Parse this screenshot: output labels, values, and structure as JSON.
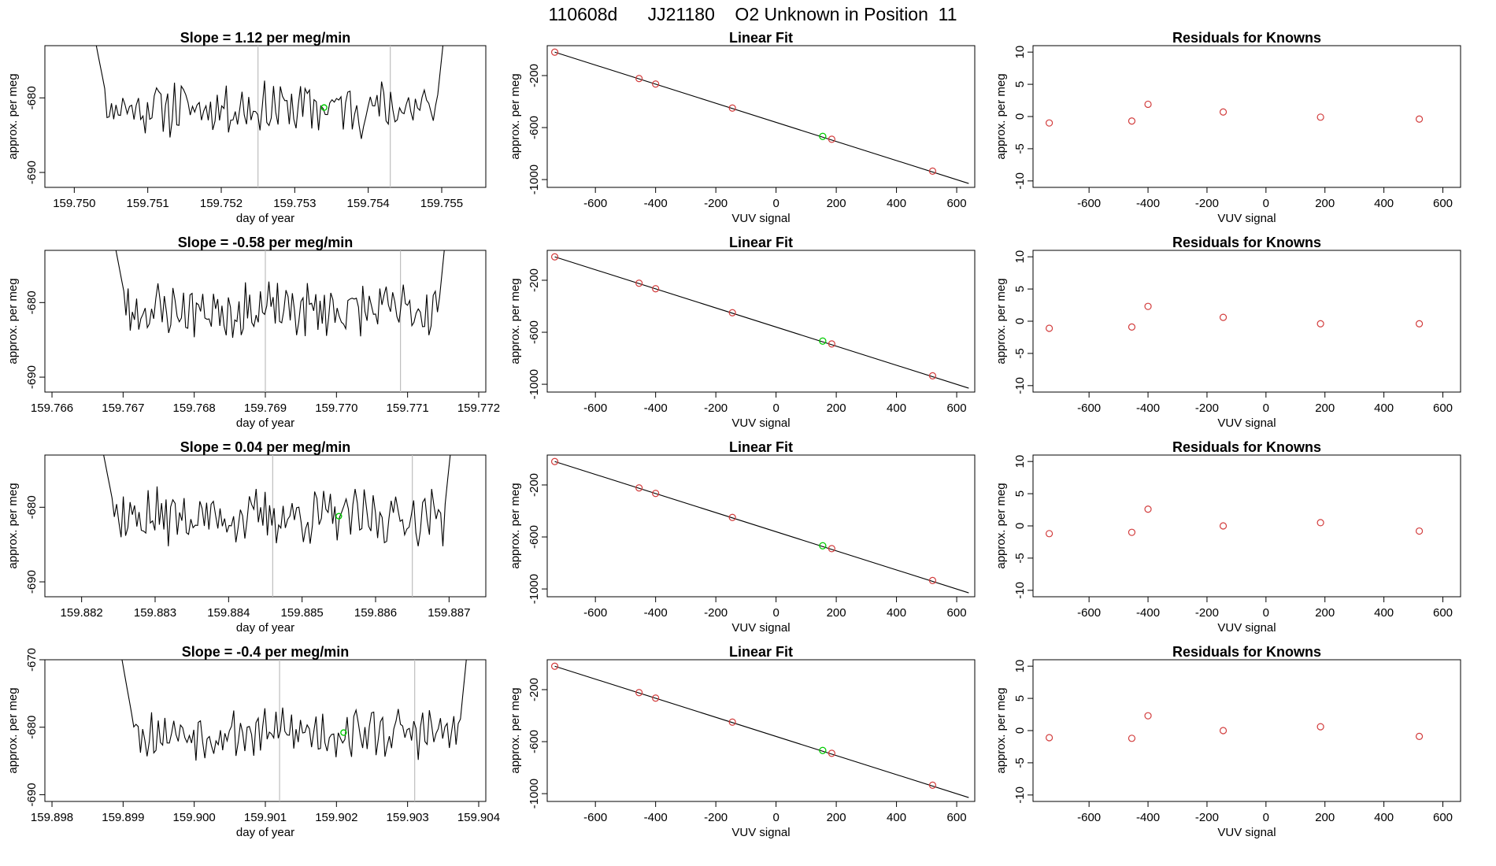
{
  "figure_title": "110608d      JJ21180    O2 Unknown in Position  11",
  "colors": {
    "trace": "#000000",
    "vline": "#bebebe",
    "highlight": "#00cc00",
    "known": "#d23c3c",
    "frame": "#000000"
  },
  "chart_data": [
    {
      "row": 0,
      "time_series": {
        "type": "line",
        "title": "Slope =  1.12  per meg/min",
        "xlabel": "day of year",
        "ylabel": "approx. per meg",
        "xlim": [
          159.7496,
          159.7556
        ],
        "ylim": [
          -692,
          -673
        ],
        "xticks": [
          "159.750",
          "159.751",
          "159.752",
          "159.753",
          "159.754",
          "159.755"
        ],
        "xtick_values": [
          159.75,
          159.751,
          159.752,
          159.753,
          159.754,
          159.755
        ],
        "yticks": [
          "-680",
          "-690"
        ],
        "ytick_values": [
          -680,
          -690
        ],
        "vlines": [
          159.7525,
          159.7543
        ],
        "x_start": 159.7502,
        "x_end": 159.7551,
        "baseline": -681.3,
        "seed": 11,
        "highlight": {
          "x": 159.7534,
          "y": -681.3
        }
      },
      "linear_fit": {
        "type": "scatter",
        "title": "Linear Fit",
        "xlabel": "VUV signal",
        "ylabel": "approx. per meg",
        "xlim": [
          -760,
          660
        ],
        "ylim": [
          -1060,
          30
        ],
        "xticks": [
          "-600",
          "-400",
          "-200",
          "0",
          "200",
          "400",
          "600"
        ],
        "xtick_values": [
          -600,
          -400,
          -200,
          0,
          200,
          400,
          600
        ],
        "yticks": [
          "-200",
          "-600",
          "-1000"
        ],
        "ytick_values": [
          -200,
          -600,
          -1000
        ],
        "line": [
          [
            -735,
            -20
          ],
          [
            640,
            -1030
          ]
        ],
        "known_points": [
          [
            -735,
            -20
          ],
          [
            -455,
            -223
          ],
          [
            -400,
            -265
          ],
          [
            -145,
            -450
          ],
          [
            185,
            -690
          ],
          [
            520,
            -935
          ]
        ],
        "unknown_point": [
          155,
          -668
        ]
      },
      "residuals": {
        "type": "scatter",
        "title": "Residuals for Knowns",
        "xlabel": "VUV signal",
        "ylabel": "approx. per meg",
        "xlim": [
          -790,
          660
        ],
        "ylim": [
          -11,
          11
        ],
        "xticks": [
          "-600",
          "-400",
          "-200",
          "0",
          "200",
          "400",
          "600"
        ],
        "xtick_values": [
          -600,
          -400,
          -200,
          0,
          200,
          400,
          600
        ],
        "yticks": [
          "-10",
          "-5",
          "0",
          "5",
          "10"
        ],
        "ytick_values": [
          -10,
          -5,
          0,
          5,
          10
        ],
        "points": [
          [
            -735,
            -1.0
          ],
          [
            -455,
            -0.7
          ],
          [
            -400,
            1.9
          ],
          [
            -145,
            0.7
          ],
          [
            185,
            -0.1
          ],
          [
            520,
            -0.4
          ]
        ]
      }
    },
    {
      "row": 1,
      "time_series": {
        "type": "line",
        "title": "Slope =  -0.58  per meg/min",
        "xlabel": "day of year",
        "ylabel": "approx. per meg",
        "xlim": [
          159.7659,
          159.7721
        ],
        "ylim": [
          -692,
          -673
        ],
        "xticks": [
          "159.766",
          "159.767",
          "159.768",
          "159.769",
          "159.770",
          "159.771",
          "159.772"
        ],
        "xtick_values": [
          159.766,
          159.767,
          159.768,
          159.769,
          159.77,
          159.771,
          159.772
        ],
        "yticks": [
          "-680",
          "-690"
        ],
        "ytick_values": [
          -680,
          -690
        ],
        "vlines": [
          159.769,
          159.7709
        ],
        "x_start": 159.7668,
        "x_end": 159.7716,
        "baseline": -681.0,
        "seed": 23,
        "highlight": null
      },
      "linear_fit": {
        "type": "scatter",
        "title": "Linear Fit",
        "xlabel": "VUV signal",
        "ylabel": "approx. per meg",
        "xlim": [
          -760,
          660
        ],
        "ylim": [
          -1060,
          30
        ],
        "xticks": [
          "-600",
          "-400",
          "-200",
          "0",
          "200",
          "400",
          "600"
        ],
        "xtick_values": [
          -600,
          -400,
          -200,
          0,
          200,
          400,
          600
        ],
        "yticks": [
          "-200",
          "-600",
          "-1000"
        ],
        "ytick_values": [
          -200,
          -600,
          -1000
        ],
        "line": [
          [
            -735,
            -20
          ],
          [
            640,
            -1030
          ]
        ],
        "known_points": [
          [
            -735,
            -20
          ],
          [
            -455,
            -223
          ],
          [
            -400,
            -265
          ],
          [
            -145,
            -450
          ],
          [
            185,
            -690
          ],
          [
            520,
            -935
          ]
        ],
        "unknown_point": [
          155,
          -668
        ]
      },
      "residuals": {
        "type": "scatter",
        "title": "Residuals for Knowns",
        "xlabel": "VUV signal",
        "ylabel": "approx. per meg",
        "xlim": [
          -790,
          660
        ],
        "ylim": [
          -11,
          11
        ],
        "xticks": [
          "-600",
          "-400",
          "-200",
          "0",
          "200",
          "400",
          "600"
        ],
        "xtick_values": [
          -600,
          -400,
          -200,
          0,
          200,
          400,
          600
        ],
        "yticks": [
          "-10",
          "-5",
          "0",
          "5",
          "10"
        ],
        "ytick_values": [
          -10,
          -5,
          0,
          5,
          10
        ],
        "points": [
          [
            -735,
            -1.1
          ],
          [
            -455,
            -0.9
          ],
          [
            -400,
            2.3
          ],
          [
            -145,
            0.6
          ],
          [
            185,
            -0.4
          ],
          [
            520,
            -0.4
          ]
        ]
      }
    },
    {
      "row": 2,
      "time_series": {
        "type": "line",
        "title": "Slope =  0.04  per meg/min",
        "xlabel": "day of year",
        "ylabel": "approx. per meg",
        "xlim": [
          159.8815,
          159.8875
        ],
        "ylim": [
          -692,
          -673
        ],
        "xticks": [
          "159.882",
          "159.883",
          "159.884",
          "159.885",
          "159.886",
          "159.887"
        ],
        "xtick_values": [
          159.882,
          159.883,
          159.884,
          159.885,
          159.886,
          159.887
        ],
        "yticks": [
          "-680",
          "-690"
        ],
        "ytick_values": [
          -680,
          -690
        ],
        "vlines": [
          159.8846,
          159.8865
        ],
        "x_start": 159.8822,
        "x_end": 159.8871,
        "baseline": -681.3,
        "seed": 37,
        "highlight": {
          "x": 159.8855,
          "y": -681.2
        }
      },
      "linear_fit": {
        "type": "scatter",
        "title": "Linear Fit",
        "xlabel": "VUV signal",
        "ylabel": "approx. per meg",
        "xlim": [
          -760,
          660
        ],
        "ylim": [
          -1060,
          30
        ],
        "xticks": [
          "-600",
          "-400",
          "-200",
          "0",
          "200",
          "400",
          "600"
        ],
        "xtick_values": [
          -600,
          -400,
          -200,
          0,
          200,
          400,
          600
        ],
        "yticks": [
          "-200",
          "-600",
          "-1000"
        ],
        "ytick_values": [
          -200,
          -600,
          -1000
        ],
        "line": [
          [
            -735,
            -20
          ],
          [
            640,
            -1030
          ]
        ],
        "known_points": [
          [
            -735,
            -20
          ],
          [
            -455,
            -223
          ],
          [
            -400,
            -265
          ],
          [
            -145,
            -450
          ],
          [
            185,
            -690
          ],
          [
            520,
            -935
          ]
        ],
        "unknown_point": [
          155,
          -668
        ]
      },
      "residuals": {
        "type": "scatter",
        "title": "Residuals for Knowns",
        "xlabel": "VUV signal",
        "ylabel": "approx. per meg",
        "xlim": [
          -790,
          660
        ],
        "ylim": [
          -11,
          11
        ],
        "xticks": [
          "-600",
          "-400",
          "-200",
          "0",
          "200",
          "400",
          "600"
        ],
        "xtick_values": [
          -600,
          -400,
          -200,
          0,
          200,
          400,
          600
        ],
        "yticks": [
          "-10",
          "-5",
          "0",
          "5",
          "10"
        ],
        "ytick_values": [
          -10,
          -5,
          0,
          5,
          10
        ],
        "points": [
          [
            -735,
            -1.2
          ],
          [
            -455,
            -1.0
          ],
          [
            -400,
            2.6
          ],
          [
            -145,
            0.0
          ],
          [
            185,
            0.5
          ],
          [
            520,
            -0.8
          ]
        ]
      }
    },
    {
      "row": 3,
      "time_series": {
        "type": "line",
        "title": "Slope =  -0.4  per meg/min",
        "xlabel": "day of year",
        "ylabel": "approx. per meg",
        "xlim": [
          159.8979,
          159.9041
        ],
        "ylim": [
          -691,
          -670
        ],
        "xticks": [
          "159.898",
          "159.899",
          "159.900",
          "159.901",
          "159.902",
          "159.903",
          "159.904"
        ],
        "xtick_values": [
          159.898,
          159.899,
          159.9,
          159.901,
          159.902,
          159.903,
          159.904
        ],
        "yticks": [
          "-670",
          "-680",
          "-690"
        ],
        "ytick_values": [
          -670,
          -680,
          -690
        ],
        "vlines": [
          159.9012,
          159.9031
        ],
        "x_start": 159.8989,
        "x_end": 159.9039,
        "baseline": -680.8,
        "seed": 53,
        "highlight": {
          "x": 159.9021,
          "y": -680.8
        }
      },
      "linear_fit": {
        "type": "scatter",
        "title": "Linear Fit",
        "xlabel": "VUV signal",
        "ylabel": "approx. per meg",
        "xlim": [
          -760,
          660
        ],
        "ylim": [
          -1060,
          30
        ],
        "xticks": [
          "-600",
          "-400",
          "-200",
          "0",
          "200",
          "400",
          "600"
        ],
        "xtick_values": [
          -600,
          -400,
          -200,
          0,
          200,
          400,
          600
        ],
        "yticks": [
          "-200",
          "-600",
          "-1000"
        ],
        "ytick_values": [
          -200,
          -600,
          -1000
        ],
        "line": [
          [
            -735,
            -20
          ],
          [
            640,
            -1030
          ]
        ],
        "known_points": [
          [
            -735,
            -20
          ],
          [
            -455,
            -223
          ],
          [
            -400,
            -265
          ],
          [
            -145,
            -450
          ],
          [
            185,
            -690
          ],
          [
            520,
            -935
          ]
        ],
        "unknown_point": [
          155,
          -668
        ]
      },
      "residuals": {
        "type": "scatter",
        "title": "Residuals for Knowns",
        "xlabel": "VUV signal",
        "ylabel": "approx. per meg",
        "xlim": [
          -790,
          660
        ],
        "ylim": [
          -11,
          11
        ],
        "xticks": [
          "-600",
          "-400",
          "-200",
          "0",
          "200",
          "400",
          "600"
        ],
        "xtick_values": [
          -600,
          -400,
          -200,
          0,
          200,
          400,
          600
        ],
        "yticks": [
          "-10",
          "-5",
          "0",
          "5",
          "10"
        ],
        "ytick_values": [
          -10,
          -5,
          0,
          5,
          10
        ],
        "points": [
          [
            -735,
            -1.1
          ],
          [
            -455,
            -1.2
          ],
          [
            -400,
            2.3
          ],
          [
            -145,
            0.0
          ],
          [
            185,
            0.6
          ],
          [
            520,
            -0.9
          ]
        ]
      }
    }
  ]
}
